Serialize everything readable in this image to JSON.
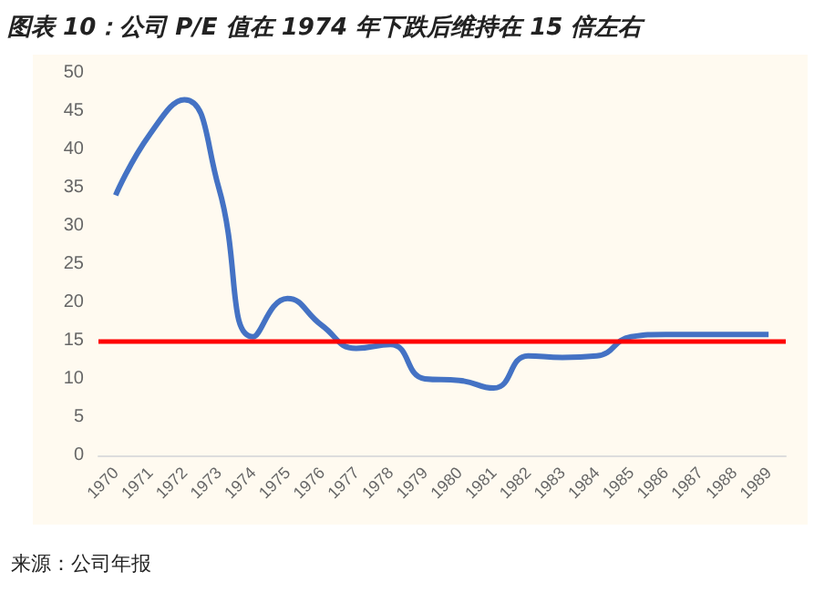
{
  "chart_data": {
    "type": "line",
    "title": "图表 10：公司 P/E 值在 1974 年下跌后维持在 15 倍左右",
    "categories": [
      "1970",
      "1971",
      "1972",
      "1973",
      "1974",
      "1975",
      "1976",
      "1977",
      "1978",
      "1979",
      "1980",
      "1981",
      "1982",
      "1983",
      "1984",
      "1985",
      "1986",
      "1987",
      "1988",
      "1989"
    ],
    "series": [
      {
        "color": "#4472c4",
        "values": [
          34,
          42,
          46.5,
          35,
          15.5,
          20.5,
          17,
          14,
          14.5,
          10,
          9.8,
          8.8,
          13,
          12.8,
          13,
          15.5,
          15.8,
          15.8,
          15.8,
          15.8
        ]
      }
    ],
    "ylim": [
      0,
      50
    ],
    "yticks": [
      0,
      5,
      10,
      15,
      20,
      25,
      30,
      35,
      40,
      45,
      50
    ],
    "grid": false,
    "marker": "none",
    "line_style": "solid",
    "ref_lines": [
      {
        "axis": "y",
        "value": 15,
        "color": "#ff0000"
      }
    ],
    "annotations": [
      "来源：公司年报"
    ]
  }
}
